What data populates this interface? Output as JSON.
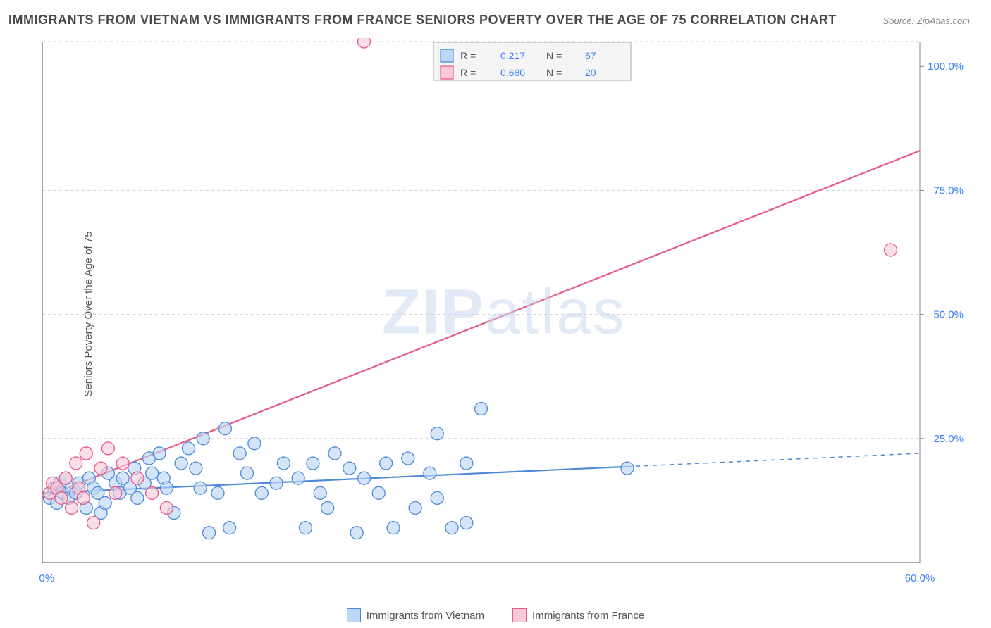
{
  "title": "IMMIGRANTS FROM VIETNAM VS IMMIGRANTS FROM FRANCE SENIORS POVERTY OVER THE AGE OF 75 CORRELATION CHART",
  "source": "Source: ZipAtlas.com",
  "ylabel": "Seniors Poverty Over the Age of 75",
  "watermark_bold": "ZIP",
  "watermark_light": "atlas",
  "chart": {
    "type": "scatter",
    "background_color": "#ffffff",
    "grid_color": "#d0d0d0",
    "axis_color": "#888888",
    "xlim": [
      0,
      60
    ],
    "ylim": [
      0,
      105
    ],
    "xticks": [
      {
        "v": 0,
        "label": "0.0%"
      },
      {
        "v": 60,
        "label": "60.0%"
      }
    ],
    "yticks": [
      {
        "v": 25,
        "label": "25.0%"
      },
      {
        "v": 50,
        "label": "50.0%"
      },
      {
        "v": 75,
        "label": "75.0%"
      },
      {
        "v": 100,
        "label": "100.0%"
      }
    ],
    "ygrid": [
      25,
      50,
      75,
      105
    ],
    "marker_radius": 9,
    "marker_stroke_width": 1.3,
    "line_width": 2.2,
    "series_vietnam": {
      "label": "Immigrants from Vietnam",
      "fill": "#bdd7f7",
      "stroke": "#4f8ad6",
      "fill_opacity": 0.65,
      "R": "0.217",
      "N": "67",
      "trend": {
        "x1": 0,
        "y1": 14,
        "x2": 60,
        "y2": 22,
        "solid_until_x": 40
      },
      "points": [
        [
          0.5,
          13
        ],
        [
          0.8,
          15
        ],
        [
          1,
          12
        ],
        [
          1.2,
          16
        ],
        [
          1.4,
          14
        ],
        [
          1.6,
          17
        ],
        [
          1.8,
          13
        ],
        [
          2,
          15
        ],
        [
          2.3,
          14
        ],
        [
          2.5,
          16
        ],
        [
          3,
          11
        ],
        [
          3.2,
          17
        ],
        [
          3.5,
          15
        ],
        [
          3.8,
          14
        ],
        [
          4,
          10
        ],
        [
          4.3,
          12
        ],
        [
          4.5,
          18
        ],
        [
          5,
          16
        ],
        [
          5.3,
          14
        ],
        [
          5.5,
          17
        ],
        [
          6,
          15
        ],
        [
          6.3,
          19
        ],
        [
          6.5,
          13
        ],
        [
          7,
          16
        ],
        [
          7.3,
          21
        ],
        [
          7.5,
          18
        ],
        [
          8,
          22
        ],
        [
          8.3,
          17
        ],
        [
          8.5,
          15
        ],
        [
          9,
          10
        ],
        [
          9.5,
          20
        ],
        [
          10,
          23
        ],
        [
          10.5,
          19
        ],
        [
          10.8,
          15
        ],
        [
          11,
          25
        ],
        [
          11.4,
          6
        ],
        [
          12,
          14
        ],
        [
          12.5,
          27
        ],
        [
          12.8,
          7
        ],
        [
          13.5,
          22
        ],
        [
          14,
          18
        ],
        [
          14.5,
          24
        ],
        [
          15,
          14
        ],
        [
          16,
          16
        ],
        [
          16.5,
          20
        ],
        [
          17.5,
          17
        ],
        [
          18,
          7
        ],
        [
          18.5,
          20
        ],
        [
          19,
          14
        ],
        [
          19.5,
          11
        ],
        [
          20,
          22
        ],
        [
          21,
          19
        ],
        [
          21.5,
          6
        ],
        [
          22,
          17
        ],
        [
          23,
          14
        ],
        [
          23.5,
          20
        ],
        [
          24,
          7
        ],
        [
          25,
          21
        ],
        [
          25.5,
          11
        ],
        [
          26.5,
          18
        ],
        [
          27,
          13
        ],
        [
          27,
          26
        ],
        [
          28,
          7
        ],
        [
          29,
          20
        ],
        [
          29,
          8
        ],
        [
          30,
          31
        ],
        [
          40,
          19
        ]
      ]
    },
    "series_france": {
      "label": "Immigrants from France",
      "fill": "#f9c9d7",
      "stroke": "#e75a89",
      "fill_opacity": 0.6,
      "R": "0.680",
      "N": "20",
      "trend": {
        "x1": 0,
        "y1": 13,
        "x2": 60,
        "y2": 83
      },
      "points": [
        [
          0.5,
          14
        ],
        [
          0.7,
          16
        ],
        [
          1,
          15
        ],
        [
          1.3,
          13
        ],
        [
          1.6,
          17
        ],
        [
          2,
          11
        ],
        [
          2.3,
          20
        ],
        [
          2.5,
          15
        ],
        [
          2.8,
          13
        ],
        [
          3,
          22
        ],
        [
          3.5,
          8
        ],
        [
          4,
          19
        ],
        [
          4.5,
          23
        ],
        [
          5,
          14
        ],
        [
          5.5,
          20
        ],
        [
          6.5,
          17
        ],
        [
          7.5,
          14
        ],
        [
          8.5,
          11
        ],
        [
          22,
          105
        ],
        [
          58,
          63
        ]
      ]
    }
  },
  "top_legend": {
    "bg": "#f5f5f5",
    "border": "#aaaaaa",
    "rows": [
      {
        "swatch_fill": "#bdd7f7",
        "swatch_stroke": "#4f8ad6",
        "R_label": "R =",
        "R": "0.217",
        "N_label": "N =",
        "N": "67"
      },
      {
        "swatch_fill": "#f9c9d7",
        "swatch_stroke": "#e75a89",
        "R_label": "R =",
        "R": "0.680",
        "N_label": "N =",
        "N": "20"
      }
    ]
  },
  "bottom_legend": [
    {
      "swatch_fill": "#bdd7f7",
      "swatch_stroke": "#4f8ad6",
      "label": "Immigrants from Vietnam"
    },
    {
      "swatch_fill": "#f9c9d7",
      "swatch_stroke": "#e75a89",
      "label": "Immigrants from France"
    }
  ]
}
